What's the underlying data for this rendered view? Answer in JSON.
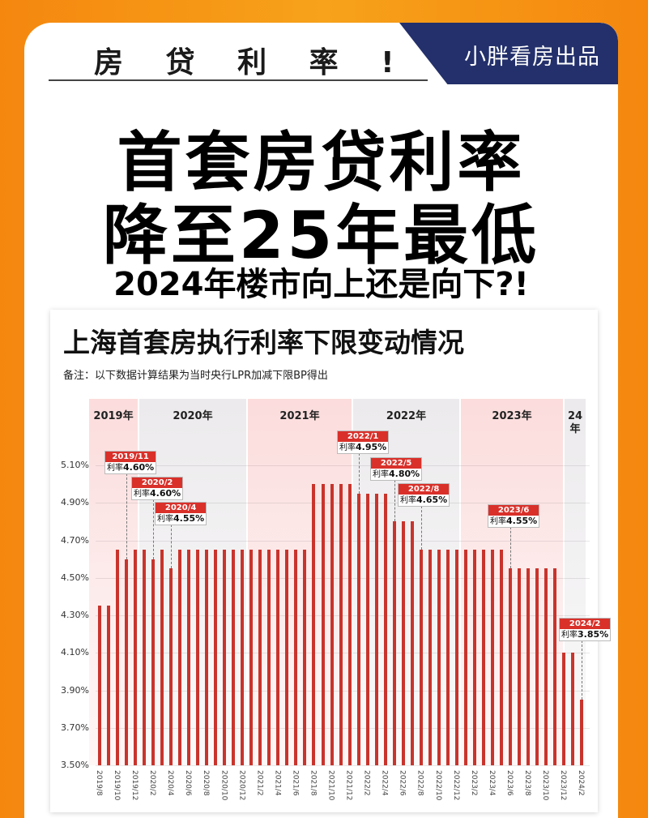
{
  "header": {
    "kicker": "房 贷 利 率 !",
    "brand": "小胖看房出品"
  },
  "headline": {
    "line1": "首套房贷利率",
    "line2": "降至25年最低",
    "line3": "2024年楼市向上还是向下?!"
  },
  "chart": {
    "title": "上海首套房执行利率下限变动情况",
    "note": "备注：以下数据计算结果为当时央行LPR加减下限BP得出"
  },
  "colors": {
    "background": "#f7a21a",
    "brand_tab": "#23306b",
    "bar": "#c8342c",
    "callout_header": "#d9302a"
  },
  "chart_data": {
    "type": "bar",
    "title": "上海首套房执行利率下限变动情况",
    "subtitle": "备注：以下数据计算结果为当时央行LPR加减下限BP得出",
    "xlabel": "",
    "ylabel": "",
    "ylim": [
      3.5,
      5.1
    ],
    "yticks": [
      "5.10%",
      "4.90%",
      "4.70%",
      "4.50%",
      "4.30%",
      "4.10%",
      "3.90%",
      "3.70%",
      "3.50%"
    ],
    "grid": true,
    "year_bands": [
      {
        "label": "2019年",
        "style": "pink"
      },
      {
        "label": "2020年",
        "style": "grey"
      },
      {
        "label": "2021年",
        "style": "pink"
      },
      {
        "label": "2022年",
        "style": "grey"
      },
      {
        "label": "2023年",
        "style": "pink"
      },
      {
        "label": "24\n年",
        "style": "grey"
      }
    ],
    "xtick_labels": [
      "2019/8",
      "2019/10",
      "2019/12",
      "2020/2",
      "2020/4",
      "2020/6",
      "2020/8",
      "2020/10",
      "2020/12",
      "2021/2",
      "2021/4",
      "2021/6",
      "2021/8",
      "2021/10",
      "2021/12",
      "2022/2",
      "2022/4",
      "2022/6",
      "2022/8",
      "2022/10",
      "2022/12",
      "2023/2",
      "2023/4",
      "2023/6",
      "2023/8",
      "2023/10",
      "2023/12",
      "2024/2"
    ],
    "categories": [
      "2019/8",
      "2019/9",
      "2019/10",
      "2019/11",
      "2019/12",
      "2020/1",
      "2020/2",
      "2020/3",
      "2020/4",
      "2020/5",
      "2020/6",
      "2020/7",
      "2020/8",
      "2020/9",
      "2020/10",
      "2020/11",
      "2020/12",
      "2021/1",
      "2021/2",
      "2021/3",
      "2021/4",
      "2021/5",
      "2021/6",
      "2021/7",
      "2021/8",
      "2021/9",
      "2021/10",
      "2021/11",
      "2021/12",
      "2022/1",
      "2022/2",
      "2022/3",
      "2022/4",
      "2022/5",
      "2022/6",
      "2022/7",
      "2022/8",
      "2022/9",
      "2022/10",
      "2022/11",
      "2022/12",
      "2023/1",
      "2023/2",
      "2023/3",
      "2023/4",
      "2023/5",
      "2023/6",
      "2023/7",
      "2023/8",
      "2023/9",
      "2023/10",
      "2023/11",
      "2023/12",
      "2024/1",
      "2024/2"
    ],
    "values": [
      4.35,
      4.35,
      4.65,
      4.6,
      4.65,
      4.65,
      4.6,
      4.65,
      4.55,
      4.65,
      4.65,
      4.65,
      4.65,
      4.65,
      4.65,
      4.65,
      4.65,
      4.65,
      4.65,
      4.65,
      4.65,
      4.65,
      4.65,
      4.65,
      5.0,
      5.0,
      5.0,
      5.0,
      5.0,
      4.95,
      4.95,
      4.95,
      4.95,
      4.8,
      4.8,
      4.8,
      4.65,
      4.65,
      4.65,
      4.65,
      4.65,
      4.65,
      4.65,
      4.65,
      4.65,
      4.65,
      4.55,
      4.55,
      4.55,
      4.55,
      4.55,
      4.55,
      4.1,
      4.1,
      3.85
    ],
    "annotations": [
      {
        "date": "2019/11",
        "rate_prefix": "利率",
        "rate": "4.60%",
        "index": 3
      },
      {
        "date": "2020/2",
        "rate_prefix": "利率",
        "rate": "4.60%",
        "index": 6
      },
      {
        "date": "2020/4",
        "rate_prefix": "利率",
        "rate": "4.55%",
        "index": 8
      },
      {
        "date": "2022/1",
        "rate_prefix": "利率",
        "rate": "4.95%",
        "index": 29
      },
      {
        "date": "2022/5",
        "rate_prefix": "利率",
        "rate": "4.80%",
        "index": 33
      },
      {
        "date": "2022/8",
        "rate_prefix": "利率",
        "rate": "4.65%",
        "index": 36
      },
      {
        "date": "2023/6",
        "rate_prefix": "利率",
        "rate": "4.55%",
        "index": 46
      },
      {
        "date": "2024/2",
        "rate_prefix": "利率",
        "rate": "3.85%",
        "index": 54
      }
    ]
  }
}
